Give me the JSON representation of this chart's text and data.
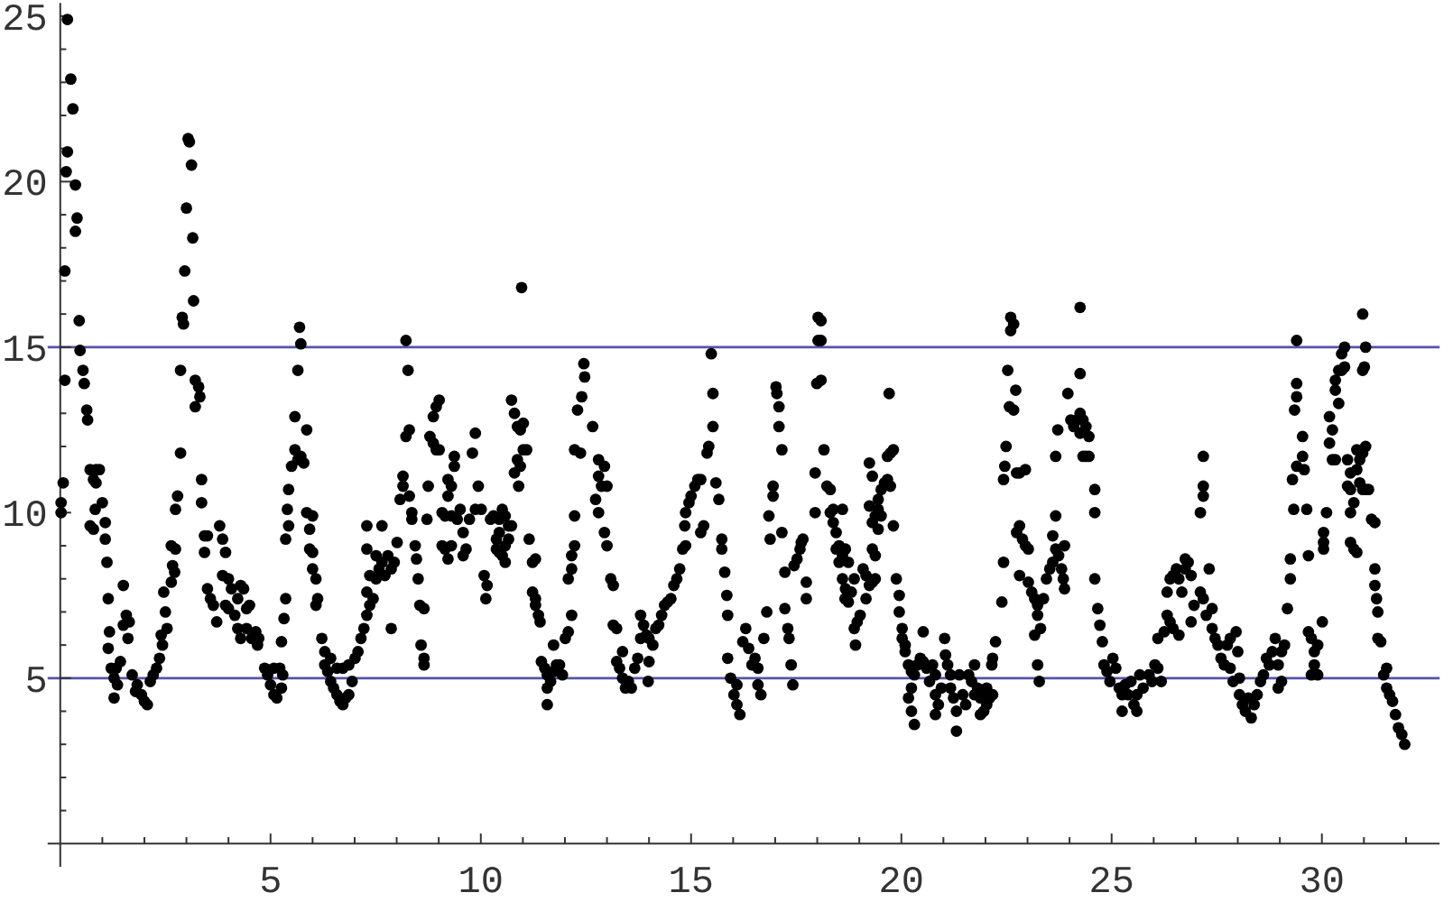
{
  "chart_data": {
    "type": "scatter",
    "marker": "circle",
    "color": "#000000",
    "xlim": [
      -0.3,
      32.8
    ],
    "ylim": [
      -0.7,
      25.4
    ],
    "xticks": [
      {
        "value": 1,
        "label": null
      },
      {
        "value": 2,
        "label": null
      },
      {
        "value": 3,
        "label": null
      },
      {
        "value": 4,
        "label": null
      },
      5,
      {
        "value": 6,
        "label": null
      },
      {
        "value": 7,
        "label": null
      },
      {
        "value": 8,
        "label": null
      },
      {
        "value": 9,
        "label": null
      },
      10,
      {
        "value": 11,
        "label": null
      },
      {
        "value": 12,
        "label": null
      },
      {
        "value": 13,
        "label": null
      },
      {
        "value": 14,
        "label": null
      },
      15,
      {
        "value": 16,
        "label": null
      },
      {
        "value": 17,
        "label": null
      },
      {
        "value": 18,
        "label": null
      },
      {
        "value": 19,
        "label": null
      },
      20,
      {
        "value": 21,
        "label": null
      },
      {
        "value": 22,
        "label": null
      },
      {
        "value": 23,
        "label": null
      },
      {
        "value": 24,
        "label": null
      },
      25,
      {
        "value": 26,
        "label": null
      },
      {
        "value": 27,
        "label": null
      },
      {
        "value": 28,
        "label": null
      },
      {
        "value": 29,
        "label": null
      },
      30,
      {
        "value": 31,
        "label": null
      },
      {
        "value": 32,
        "label": null
      }
    ],
    "yticks": [
      {
        "value": 1,
        "label": null
      },
      {
        "value": 2,
        "label": null
      },
      {
        "value": 3,
        "label": null
      },
      {
        "value": 4,
        "label": null
      },
      5,
      {
        "value": 6,
        "label": null
      },
      {
        "value": 7,
        "label": null
      },
      {
        "value": 8,
        "label": null
      },
      {
        "value": 9,
        "label": null
      },
      10,
      {
        "value": 11,
        "label": null
      },
      {
        "value": 12,
        "label": null
      },
      {
        "value": 13,
        "label": null
      },
      {
        "value": 14,
        "label": null
      },
      15,
      {
        "value": 16,
        "label": null
      },
      {
        "value": 17,
        "label": null
      },
      {
        "value": 18,
        "label": null
      },
      {
        "value": 19,
        "label": null
      },
      20,
      {
        "value": 21,
        "label": null
      },
      {
        "value": 22,
        "label": null
      },
      {
        "value": 23,
        "label": null
      },
      {
        "value": 24,
        "label": null
      },
      25
    ],
    "ref_lines": [
      {
        "axis": "y",
        "value": 5,
        "color": "#5454a8"
      },
      {
        "axis": "y",
        "value": 15,
        "color": "#5454a8"
      }
    ],
    "x": [
      0.17,
      0.25,
      0.3,
      0.17,
      0.14,
      0.36,
      0.4,
      0.36,
      0.11,
      0.45,
      0.47,
      0.54,
      0.11,
      0.57,
      0.63,
      0.65,
      0.07,
      0.02,
      0.02,
      0.71,
      0.85,
      0.93,
      0.79,
      0.85,
      0.83,
      1.0,
      0.71,
      0.79,
      1.07,
      1.07,
      1.11,
      1.14,
      1.17,
      1.14,
      1.21,
      1.33,
      1.43,
      1.28,
      1.36,
      1.28,
      1.5,
      1.57,
      1.64,
      1.5,
      1.61,
      1.71,
      1.83,
      1.93,
      2.0,
      2.07,
      1.79,
      2.14,
      2.21,
      2.29,
      2.36,
      2.43,
      2.4,
      2.5,
      2.54,
      2.46,
      2.64,
      2.72,
      2.67,
      2.74,
      2.64,
      2.79,
      2.74,
      2.86,
      2.86,
      2.9,
      2.93,
      2.96,
      3.0,
      3.04,
      3.07,
      3.12,
      3.15,
      3.17,
      3.21,
      3.29,
      3.32,
      3.21,
      3.36,
      3.36,
      3.43,
      3.5,
      3.43,
      3.57,
      3.64,
      3.72,
      3.5,
      3.79,
      3.86,
      3.93,
      3.86,
      4.0,
      4.07,
      3.93,
      4.0,
      4.15,
      4.22,
      4.29,
      4.36,
      4.22,
      4.29,
      4.43,
      4.5,
      4.43,
      4.55,
      4.65,
      4.72,
      4.69,
      4.86,
      4.93,
      5.0,
      5.08,
      5.15,
      5.08,
      5.22,
      5.29,
      5.26,
      5.26,
      5.32,
      5.36,
      5.36,
      5.43,
      5.4,
      5.43,
      5.5,
      5.58,
      5.65,
      5.72,
      5.79,
      5.58,
      5.65,
      5.69,
      5.72,
      5.86,
      5.86,
      6.0,
      5.93,
      5.93,
      6.0,
      6.0,
      6.08,
      6.12,
      6.08,
      6.22,
      6.29,
      6.29,
      6.36,
      6.43,
      6.5,
      6.58,
      6.65,
      6.72,
      6.79,
      6.86,
      6.94,
      6.43,
      6.58,
      6.72,
      6.86,
      7.01,
      7.08,
      7.15,
      7.22,
      7.29,
      7.36,
      7.29,
      7.44,
      7.36,
      7.51,
      7.29,
      7.51,
      7.29,
      7.65,
      7.58,
      7.65,
      7.72,
      7.79,
      7.87,
      7.94,
      7.87,
      8.01,
      8.08,
      8.15,
      8.15,
      8.22,
      8.3,
      8.22,
      8.27,
      8.3,
      8.36,
      8.36,
      8.44,
      8.47,
      8.51,
      8.55,
      8.65,
      8.58,
      8.65,
      8.65,
      8.72,
      8.75,
      8.79,
      8.87,
      8.94,
      9.01,
      8.87,
      8.94,
      9.01,
      9.08,
      9.15,
      9.08,
      9.15,
      9.22,
      9.3,
      9.3,
      9.22,
      9.3,
      9.22,
      9.37,
      9.37,
      9.44,
      9.51,
      9.58,
      9.58,
      9.65,
      9.73,
      9.8,
      9.87,
      9.94,
      9.87,
      10.01,
      10.08,
      10.12,
      10.15,
      10.23,
      10.3,
      10.37,
      10.44,
      10.44,
      10.37,
      10.44,
      10.51,
      10.58,
      10.58,
      10.51,
      10.58,
      10.66,
      10.73,
      10.66,
      10.8,
      10.87,
      10.94,
      11.01,
      10.73,
      10.8,
      10.87,
      10.94,
      11.01,
      10.9,
      10.97,
      11.09,
      11.15,
      11.23,
      11.3,
      11.23,
      11.3,
      11.3,
      11.37,
      11.41,
      11.44,
      11.52,
      11.58,
      11.66,
      11.73,
      11.8,
      11.58,
      11.58,
      11.73,
      11.87,
      11.94,
      12.01,
      12.08,
      12.16,
      12.08,
      12.16,
      12.16,
      12.23,
      12.23,
      12.23,
      12.3,
      12.37,
      12.4,
      12.47,
      12.45,
      12.66,
      12.8,
      12.8,
      12.87,
      12.94,
      13.0,
      12.73,
      12.8,
      12.94,
      13.0,
      13.09,
      13.15,
      13.15,
      13.23,
      13.23,
      13.3,
      13.37,
      13.44,
      13.51,
      13.58,
      13.66,
      13.73,
      13.8,
      13.37,
      13.8,
      13.87,
      13.94,
      14.0,
      14.09,
      14.16,
      14.23,
      14.3,
      14.37,
      14.44,
      14.52,
      14.59,
      14.66,
      14.73,
      14.8,
      14.0,
      13.98,
      14.85,
      14.87,
      14.95,
      15.0,
      15.09,
      15.16,
      15.23,
      14.87,
      15.23,
      15.3,
      15.38,
      15.42,
      15.52,
      15.52,
      15.48,
      15.59,
      15.66,
      15.73,
      15.73,
      15.8,
      15.85,
      15.87,
      15.87,
      15.94,
      16.02,
      16.09,
      16.16,
      16.09,
      16.23,
      16.3,
      16.37,
      16.45,
      16.52,
      16.59,
      16.59,
      16.66,
      16.73,
      16.8,
      16.88,
      16.85,
      16.95,
      16.95,
      17.02,
      17.04,
      17.09,
      17.09,
      17.16,
      17.16,
      17.23,
      17.23,
      17.3,
      17.33,
      17.38,
      17.42,
      17.45,
      17.52,
      17.59,
      17.62,
      17.66,
      17.74,
      17.74,
      17.95,
      17.95,
      17.99,
      18.09,
      18.02,
      18.09,
      18.02,
      18.09,
      18.16,
      18.23,
      18.31,
      18.38,
      18.45,
      18.52,
      18.6,
      18.6,
      18.66,
      18.6,
      18.31,
      18.38,
      18.45,
      18.52,
      18.67,
      18.74,
      18.67,
      18.81,
      18.88,
      18.74,
      18.88,
      18.91,
      18.95,
      19.02,
      19.09,
      19.16,
      19.16,
      19.24,
      19.31,
      19.31,
      19.38,
      19.38,
      19.24,
      19.31,
      19.38,
      19.45,
      19.45,
      19.52,
      19.24,
      19.31,
      19.45,
      19.52,
      19.6,
      19.67,
      19.74,
      19.74,
      19.67,
      19.81,
      19.71,
      19.81,
      19.88,
      19.95,
      19.95,
      20.02,
      20.02,
      20.09,
      20.09,
      20.17,
      20.24,
      20.31,
      20.38,
      20.45,
      20.52,
      20.52,
      20.17,
      20.24,
      20.31,
      20.24,
      20.6,
      20.67,
      20.74,
      20.81,
      20.81,
      20.88,
      20.81,
      20.95,
      21.03,
      21.05,
      21.1,
      21.17,
      21.17,
      21.24,
      21.31,
      21.31,
      21.38,
      21.46,
      21.53,
      21.6,
      21.67,
      21.74,
      21.74,
      21.81,
      21.88,
      21.96,
      22.03,
      21.96,
      22.03,
      22.1,
      22.17,
      21.88,
      22.15,
      22.17,
      22.24,
      22.39,
      22.43,
      22.43,
      22.46,
      22.49,
      22.57,
      22.67,
      22.53,
      22.72,
      22.6,
      22.67,
      22.6,
      22.74,
      22.81,
      22.95,
      22.74,
      22.81,
      22.88,
      22.95,
      23.02,
      22.81,
      23.02,
      23.1,
      23.17,
      23.24,
      23.38,
      23.24,
      23.31,
      23.17,
      23.24,
      23.28,
      23.45,
      23.53,
      23.6,
      23.67,
      23.74,
      23.88,
      23.81,
      23.67,
      23.6,
      23.85,
      23.88,
      23.67,
      23.72,
      23.96,
      24.03,
      24.1,
      24.18,
      24.25,
      24.32,
      24.25,
      24.39,
      24.46,
      24.32,
      24.39,
      24.46,
      24.25,
      24.25,
      24.6,
      24.6,
      24.6,
      24.67,
      24.72,
      24.78,
      24.82,
      24.89,
      24.96,
      25.03,
      25.1,
      25.18,
      25.25,
      25.32,
      25.39,
      25.46,
      25.53,
      25.6,
      25.67,
      25.75,
      25.89,
      25.96,
      26.03,
      26.1,
      26.18,
      25.25,
      25.6,
      26.1,
      26.25,
      26.32,
      26.39,
      26.32,
      26.39,
      26.46,
      26.54,
      26.6,
      26.67,
      26.75,
      26.82,
      26.89,
      26.96,
      27.11,
      27.18,
      27.32,
      27.25,
      27.39,
      26.46,
      26.6,
      26.75,
      26.89,
      27.11,
      27.18,
      27.18,
      27.18,
      27.39,
      27.46,
      27.53,
      27.6,
      27.68,
      27.75,
      27.82,
      27.82,
      27.89,
      27.96,
      28.0,
      28.04,
      28.04,
      28.11,
      28.18,
      28.25,
      28.32,
      28.39,
      28.46,
      28.54,
      28.61,
      28.68,
      28.75,
      28.82,
      28.89,
      28.96,
      29.04,
      29.11,
      28.96,
      29.04,
      29.18,
      29.25,
      29.25,
      29.33,
      29.3,
      29.4,
      29.35,
      29.4,
      29.4,
      29.4,
      29.54,
      29.54,
      29.58,
      29.64,
      29.68,
      29.68,
      29.75,
      29.82,
      29.82,
      29.75,
      29.9,
      29.9,
      30.01,
      30.04,
      30.04,
      30.04,
      30.11,
      30.18,
      30.18,
      30.25,
      30.32,
      30.25,
      30.32,
      30.4,
      30.32,
      30.4,
      30.47,
      30.54,
      30.47,
      30.54,
      30.61,
      30.68,
      30.61,
      30.68,
      30.76,
      30.68,
      30.68,
      30.76,
      30.83,
      30.83,
      30.9,
      30.97,
      31.04,
      30.83,
      30.9,
      30.97,
      31.04,
      31.11,
      30.97,
      31.01,
      31.04,
      30.97,
      31.18,
      31.26,
      31.26,
      31.26,
      31.3,
      31.33,
      31.33,
      31.4,
      31.54,
      31.47,
      31.54,
      31.61,
      31.68,
      31.75,
      31.82,
      31.9,
      31.97
    ],
    "values": [
      24.9,
      23.1,
      22.2,
      20.9,
      20.3,
      19.9,
      18.9,
      18.5,
      17.3,
      15.8,
      14.9,
      14.3,
      14.0,
      13.9,
      13.1,
      12.8,
      10.9,
      10.3,
      10.0,
      11.3,
      11.3,
      11.3,
      11.0,
      10.9,
      10.1,
      10.3,
      9.6,
      9.5,
      9.7,
      9.2,
      8.5,
      7.4,
      6.4,
      5.9,
      5.3,
      5.3,
      5.5,
      5.0,
      4.8,
      4.4,
      7.8,
      6.9,
      6.7,
      6.6,
      6.2,
      5.1,
      4.8,
      4.5,
      4.3,
      4.2,
      4.6,
      4.9,
      5.1,
      5.3,
      5.6,
      6.0,
      6.3,
      7.0,
      6.5,
      7.6,
      7.9,
      8.2,
      8.4,
      8.9,
      9.0,
      10.5,
      10.1,
      11.8,
      14.3,
      15.9,
      15.7,
      17.3,
      19.2,
      21.3,
      21.2,
      20.5,
      18.3,
      16.4,
      14.0,
      13.8,
      13.5,
      13.2,
      11.0,
      10.3,
      9.3,
      9.3,
      8.8,
      7.4,
      7.2,
      6.7,
      7.7,
      9.6,
      9.2,
      8.8,
      8.1,
      8.0,
      7.7,
      7.2,
      7.1,
      6.9,
      7.4,
      7.8,
      7.7,
      6.5,
      6.2,
      7.1,
      7.2,
      6.5,
      6.2,
      6.4,
      6.2,
      6.0,
      5.3,
      5.1,
      4.8,
      4.5,
      4.4,
      5.3,
      5.3,
      5.1,
      4.7,
      6.1,
      6.8,
      7.4,
      9.2,
      9.6,
      10.1,
      10.7,
      11.4,
      11.9,
      11.6,
      11.7,
      11.5,
      12.9,
      14.3,
      15.6,
      15.1,
      12.5,
      10.0,
      9.9,
      9.5,
      8.9,
      8.8,
      8.3,
      8.0,
      7.4,
      7.2,
      6.2,
      5.8,
      5.4,
      5.2,
      4.9,
      4.7,
      4.5,
      4.3,
      4.2,
      4.4,
      4.5,
      4.9,
      5.6,
      5.3,
      5.3,
      5.4,
      5.6,
      5.8,
      6.2,
      6.5,
      6.9,
      7.2,
      7.6,
      7.4,
      8.1,
      8.0,
      8.9,
      8.7,
      9.6,
      9.6,
      8.3,
      8.5,
      8.1,
      8.7,
      8.3,
      8.5,
      6.5,
      9.1,
      10.4,
      10.8,
      11.1,
      12.3,
      12.5,
      15.2,
      14.3,
      10.5,
      10.0,
      9.8,
      9.0,
      8.6,
      8.0,
      7.2,
      7.1,
      6.0,
      5.6,
      5.4,
      9.8,
      10.8,
      12.3,
      12.1,
      11.9,
      11.9,
      12.9,
      13.2,
      13.4,
      10.0,
      9.9,
      9.0,
      8.9,
      8.6,
      9.0,
      9.9,
      10.5,
      10.8,
      11.0,
      11.4,
      11.7,
      9.8,
      10.1,
      9.4,
      8.7,
      8.9,
      9.8,
      11.8,
      12.4,
      10.8,
      10.1,
      10.1,
      8.1,
      7.4,
      7.8,
      9.8,
      9.9,
      9.2,
      9.4,
      9.8,
      8.9,
      8.8,
      8.7,
      8.5,
      9.0,
      10.1,
      9.9,
      9.6,
      9.6,
      9.2,
      11.2,
      11.6,
      11.4,
      11.9,
      13.4,
      13.0,
      12.6,
      12.5,
      12.7,
      10.8,
      16.8,
      11.9,
      9.2,
      8.5,
      8.6,
      7.6,
      7.4,
      7.2,
      6.9,
      6.7,
      5.5,
      5.3,
      5.1,
      4.9,
      5.2,
      5.4,
      4.7,
      4.2,
      6.0,
      5.4,
      5.1,
      6.2,
      6.4,
      6.9,
      8.0,
      8.3,
      8.7,
      9.0,
      9.9,
      11.9,
      13.1,
      11.8,
      13.5,
      14.1,
      14.5,
      12.6,
      11.6,
      11.1,
      10.8,
      11.4,
      10.8,
      10.4,
      10.0,
      9.4,
      9.0,
      8.0,
      7.8,
      6.6,
      6.5,
      5.5,
      5.3,
      5.0,
      4.7,
      4.9,
      4.7,
      5.3,
      5.6,
      6.2,
      5.8,
      6.9,
      6.6,
      6.3,
      6.2,
      6.0,
      6.5,
      6.6,
      6.9,
      7.2,
      7.3,
      7.4,
      7.8,
      8.0,
      8.3,
      8.9,
      5.5,
      4.9,
      9.6,
      10.0,
      10.3,
      10.5,
      10.8,
      11.0,
      11.0,
      9.0,
      9.4,
      9.6,
      11.8,
      12.0,
      12.6,
      13.6,
      14.8,
      10.9,
      10.4,
      9.2,
      8.9,
      8.2,
      7.5,
      6.9,
      5.6,
      5.0,
      4.5,
      4.2,
      3.9,
      4.8,
      6.1,
      6.5,
      5.9,
      5.4,
      5.6,
      5.3,
      4.8,
      4.5,
      6.2,
      7.0,
      9.2,
      9.9,
      10.5,
      10.8,
      13.8,
      13.6,
      13.2,
      12.6,
      11.9,
      9.4,
      8.2,
      7.1,
      6.5,
      6.2,
      5.4,
      4.8,
      8.4,
      8.6,
      8.9,
      9.1,
      9.2,
      7.9,
      7.4,
      11.2,
      10.0,
      13.9,
      14.0,
      15.9,
      15.8,
      15.2,
      15.2,
      11.9,
      10.8,
      10.7,
      10.1,
      9.4,
      9.0,
      8.7,
      8.0,
      7.4,
      10.1,
      10.0,
      9.7,
      8.9,
      8.5,
      8.9,
      8.5,
      7.7,
      7.6,
      8.0,
      7.3,
      6.5,
      6.0,
      6.7,
      6.9,
      8.3,
      8.1,
      7.4,
      7.8,
      8.9,
      7.9,
      8.0,
      8.7,
      10.2,
      9.7,
      9.9,
      10.1,
      9.5,
      9.9,
      11.5,
      11.1,
      10.4,
      10.7,
      10.9,
      11.0,
      10.8,
      11.8,
      11.7,
      11.9,
      13.6,
      9.6,
      8.0,
      7.5,
      7.0,
      6.5,
      6.2,
      6.0,
      5.8,
      5.4,
      5.2,
      5.1,
      5.4,
      5.6,
      5.5,
      6.4,
      4.4,
      4.0,
      3.6,
      4.7,
      5.3,
      4.9,
      5.4,
      5.1,
      4.5,
      4.2,
      3.9,
      4.7,
      6.2,
      5.7,
      5.4,
      5.1,
      4.7,
      4.4,
      4.0,
      3.4,
      5.1,
      4.5,
      4.2,
      5.1,
      4.9,
      5.4,
      4.5,
      4.7,
      4.4,
      4.5,
      4.7,
      4.0,
      4.2,
      4.4,
      4.5,
      3.9,
      5.4,
      5.6,
      6.1,
      7.3,
      8.5,
      11.0,
      11.4,
      12.0,
      13.2,
      13.1,
      14.3,
      13.7,
      15.9,
      15.7,
      15.5,
      11.2,
      11.2,
      11.3,
      9.4,
      9.6,
      9.2,
      9.0,
      8.9,
      8.1,
      7.9,
      7.6,
      7.4,
      7.2,
      7.4,
      6.9,
      6.5,
      6.3,
      5.4,
      4.9,
      8.0,
      8.3,
      8.5,
      8.9,
      8.7,
      9.0,
      8.3,
      9.9,
      9.3,
      8.0,
      7.7,
      11.7,
      12.5,
      13.6,
      12.8,
      12.6,
      12.8,
      13.0,
      12.8,
      12.4,
      12.6,
      12.3,
      11.7,
      11.7,
      11.7,
      16.2,
      14.2,
      10.7,
      10.0,
      8.0,
      7.1,
      6.6,
      6.1,
      5.4,
      5.2,
      4.9,
      5.6,
      5.3,
      4.7,
      4.5,
      4.8,
      4.5,
      4.9,
      4.2,
      4.5,
      5.1,
      4.7,
      5.1,
      4.9,
      5.4,
      5.3,
      4.9,
      4.0,
      4.0,
      6.2,
      6.4,
      6.9,
      6.7,
      7.6,
      8.0,
      8.1,
      8.3,
      8.0,
      7.6,
      8.3,
      8.5,
      8.1,
      7.2,
      7.6,
      7.4,
      8.3,
      6.9,
      7.1,
      6.5,
      6.3,
      8.6,
      6.7,
      10.0,
      10.5,
      10.8,
      11.7,
      6.5,
      6.2,
      6.0,
      5.6,
      5.4,
      6.0,
      6.2,
      5.3,
      4.9,
      6.4,
      5.8,
      5.0,
      4.5,
      4.2,
      4.0,
      4.4,
      3.8,
      4.2,
      4.5,
      4.9,
      5.1,
      5.6,
      5.4,
      5.8,
      6.2,
      5.4,
      5.8,
      6.0,
      4.7,
      4.9,
      7.1,
      8.0,
      8.6,
      10.1,
      11.0,
      11.4,
      13.1,
      13.5,
      13.9,
      15.2,
      12.3,
      11.7,
      11.3,
      10.1,
      8.7,
      6.4,
      6.2,
      5.8,
      5.4,
      5.1,
      6.0,
      5.1,
      6.7,
      8.9,
      9.1,
      9.4,
      10.0,
      12.9,
      12.1,
      11.6,
      11.6,
      12.5,
      13.7,
      13.3,
      14.0,
      14.3,
      14.3,
      14.4,
      14.8,
      15.0,
      11.6,
      11.2,
      10.8,
      10.7,
      10.3,
      10.0,
      9.1,
      8.9,
      8.8,
      11.9,
      11.6,
      11.8,
      12.0,
      11.3,
      10.9,
      10.7,
      10.7,
      10.7,
      14.3,
      14.4,
      15.0,
      16.0,
      9.8,
      9.7,
      8.3,
      7.8,
      7.4,
      7.0,
      6.2,
      6.1,
      5.3,
      5.1,
      4.7,
      4.5,
      4.3,
      3.9,
      3.5,
      3.3,
      3.0
    ]
  }
}
